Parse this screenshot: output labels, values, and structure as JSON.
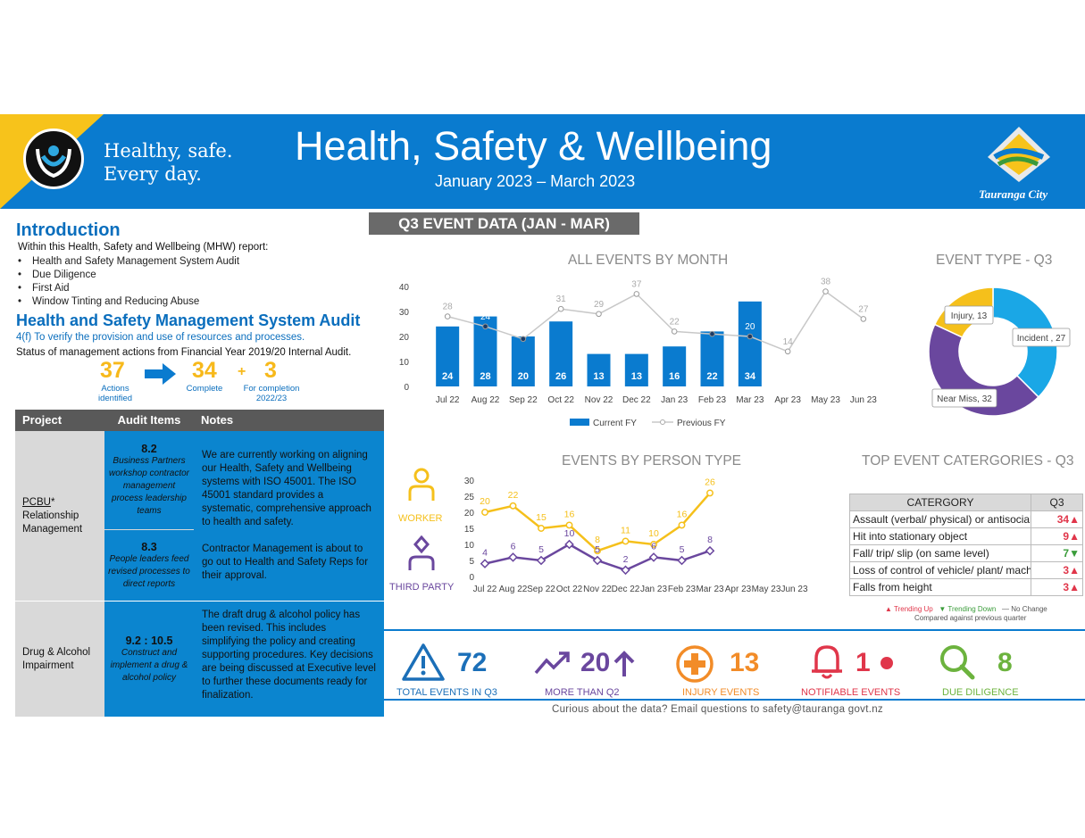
{
  "header": {
    "tagline_line1": "Healthy, safe.",
    "tagline_line2": "Every day.",
    "title": "Health, Safety & Wellbeing",
    "subtitle": "January 2023 – March 2023",
    "city": "Tauranga City"
  },
  "intro": {
    "heading": "Introduction",
    "lead": "Within this Health, Safety and Wellbeing (MHW) report:",
    "items": [
      "Health and Safety Management System Audit",
      "Due Diligence",
      "First Aid",
      "Window Tinting and Reducing Abuse"
    ]
  },
  "audit": {
    "heading": "Health and Safety Management System Audit",
    "clause": "4(f) To verify the provision and use of resources and processes.",
    "status": "Status of management actions from Financial Year 2019/20 Internal Audit.",
    "actions_num": "37",
    "actions_lbl": "Actions identified",
    "complete_num": "34",
    "complete_lbl": "Complete",
    "plus": "+",
    "remaining_num": "3",
    "remaining_lbl": "For completion 2022/23"
  },
  "table": {
    "headers": [
      "Project",
      "Audit Items",
      "Notes"
    ],
    "rows": [
      {
        "project_link": "PCBU",
        "project_rest": "* Relationship Management",
        "items": [
          {
            "num": "8.2",
            "desc": "Business Partners workshop contractor management process leadership teams"
          },
          {
            "num": "8.3",
            "desc": "People leaders feed revised processes to direct reports"
          }
        ],
        "note1": "We are currently working on aligning our Health, Safety and Wellbeing systems with ISO 45001. The ISO 45001 standard provides a systematic, comprehensive approach to health and safety.",
        "note2": "Contractor Management is about to go out to Health and Safety Reps for their approval."
      },
      {
        "project": "Drug & Alcohol Impairment",
        "items": [
          {
            "num": "9.2 : 10.5",
            "desc": "Construct and implement a drug & alcohol policy"
          }
        ],
        "note1": "The draft drug & alcohol policy has been revised. This includes simplifying the policy and creating supporting procedures. Key decisions are being discussed at Executive level to further these documents ready for finalization."
      }
    ]
  },
  "q3_banner": "Q3 EVENT DATA (JAN - MAR)",
  "chart_data": [
    {
      "type": "bar",
      "title": "ALL EVENTS BY MONTH",
      "categories": [
        "Jul 22",
        "Aug 22",
        "Sep 22",
        "Oct 22",
        "Nov 22",
        "Dec 22",
        "Jan 23",
        "Feb 23",
        "Mar 23",
        "Apr 23",
        "May 23",
        "Jun 23"
      ],
      "series": [
        {
          "name": "Current FY",
          "values": [
            24,
            28,
            20,
            26,
            13,
            13,
            16,
            22,
            34,
            null,
            null,
            null
          ],
          "color": "#0a7bcf"
        },
        {
          "name": "Previous FY",
          "values": [
            28,
            24,
            19,
            31,
            29,
            37,
            22,
            21,
            20,
            14,
            38,
            27
          ],
          "color": "#c8c8c8"
        }
      ],
      "ylim": [
        0,
        40
      ],
      "yticks": [
        "0",
        "10",
        "20",
        "30",
        "40"
      ],
      "legend": "bottom"
    },
    {
      "type": "pie",
      "title": "EVENT TYPE - Q3",
      "labels": [
        "Incident , 27",
        "Near Miss, 32",
        "Injury, 13"
      ],
      "values": [
        27,
        32,
        13
      ],
      "colors": [
        "#1aa7e6",
        "#6a479e",
        "#f5c01b"
      ]
    },
    {
      "type": "line",
      "title": "EVENTS BY PERSON TYPE",
      "categories": [
        "Jul 22",
        "Aug 22",
        "Sep 22",
        "Oct 22",
        "Nov 22",
        "Dec 22",
        "Jan 23",
        "Feb 23",
        "Mar 23",
        "Apr 23",
        "May 23",
        "Jun 23"
      ],
      "series": [
        {
          "name": "WORKER",
          "values": [
            20,
            22,
            15,
            16,
            8,
            11,
            10,
            16,
            26,
            null,
            null,
            null
          ],
          "color": "#f5c01b"
        },
        {
          "name": "THIRD PARTY",
          "values": [
            4,
            6,
            5,
            10,
            5,
            2,
            6,
            5,
            8,
            null,
            null,
            null
          ],
          "color": "#6a479e"
        }
      ],
      "ylim": [
        0,
        30
      ],
      "yticks": [
        "0",
        "5",
        "10",
        "15",
        "20",
        "25",
        "30"
      ]
    }
  ],
  "categories_table": {
    "title": "TOP EVENT CATERGORIES - Q3",
    "headers": [
      "CATERGORY",
      "Q3"
    ],
    "rows": [
      {
        "name": "Assault (verbal/ physical) or antisocial",
        "value": "34",
        "trend": "up"
      },
      {
        "name": "Hit into stationary object",
        "value": "9",
        "trend": "up"
      },
      {
        "name": "Fall/ trip/ slip (on same level)",
        "value": "7",
        "trend": "down"
      },
      {
        "name": "Loss of control of vehicle/ plant/ machinery",
        "value": "3",
        "trend": "up"
      },
      {
        "name": "Falls from height",
        "value": "3",
        "trend": "up"
      }
    ],
    "legend_up": "Trending Up",
    "legend_down": "Trending Down",
    "legend_none": "No Change",
    "legend_note": "Compared against previous quarter"
  },
  "kpis": [
    {
      "value": "72",
      "label": "TOTAL EVENTS IN Q3",
      "color": "#1b6fb8",
      "icon": "warning-icon"
    },
    {
      "value": "20",
      "label": "MORE THAN Q2",
      "color": "#6a479e",
      "icon": "trend-up-icon"
    },
    {
      "value": "13",
      "label": "INJURY EVENTS",
      "color": "#f28c28",
      "icon": "first-aid-icon"
    },
    {
      "value": "1",
      "label": "NOTIFIABLE EVENTS",
      "color": "#e0364a",
      "icon": "bell-icon"
    },
    {
      "value": "8",
      "label": "DUE DILIGENCE",
      "color": "#6cb33e",
      "icon": "magnifier-icon"
    }
  ],
  "footer": "Curious about the data? Email questions to safety@tauranga govt.nz"
}
